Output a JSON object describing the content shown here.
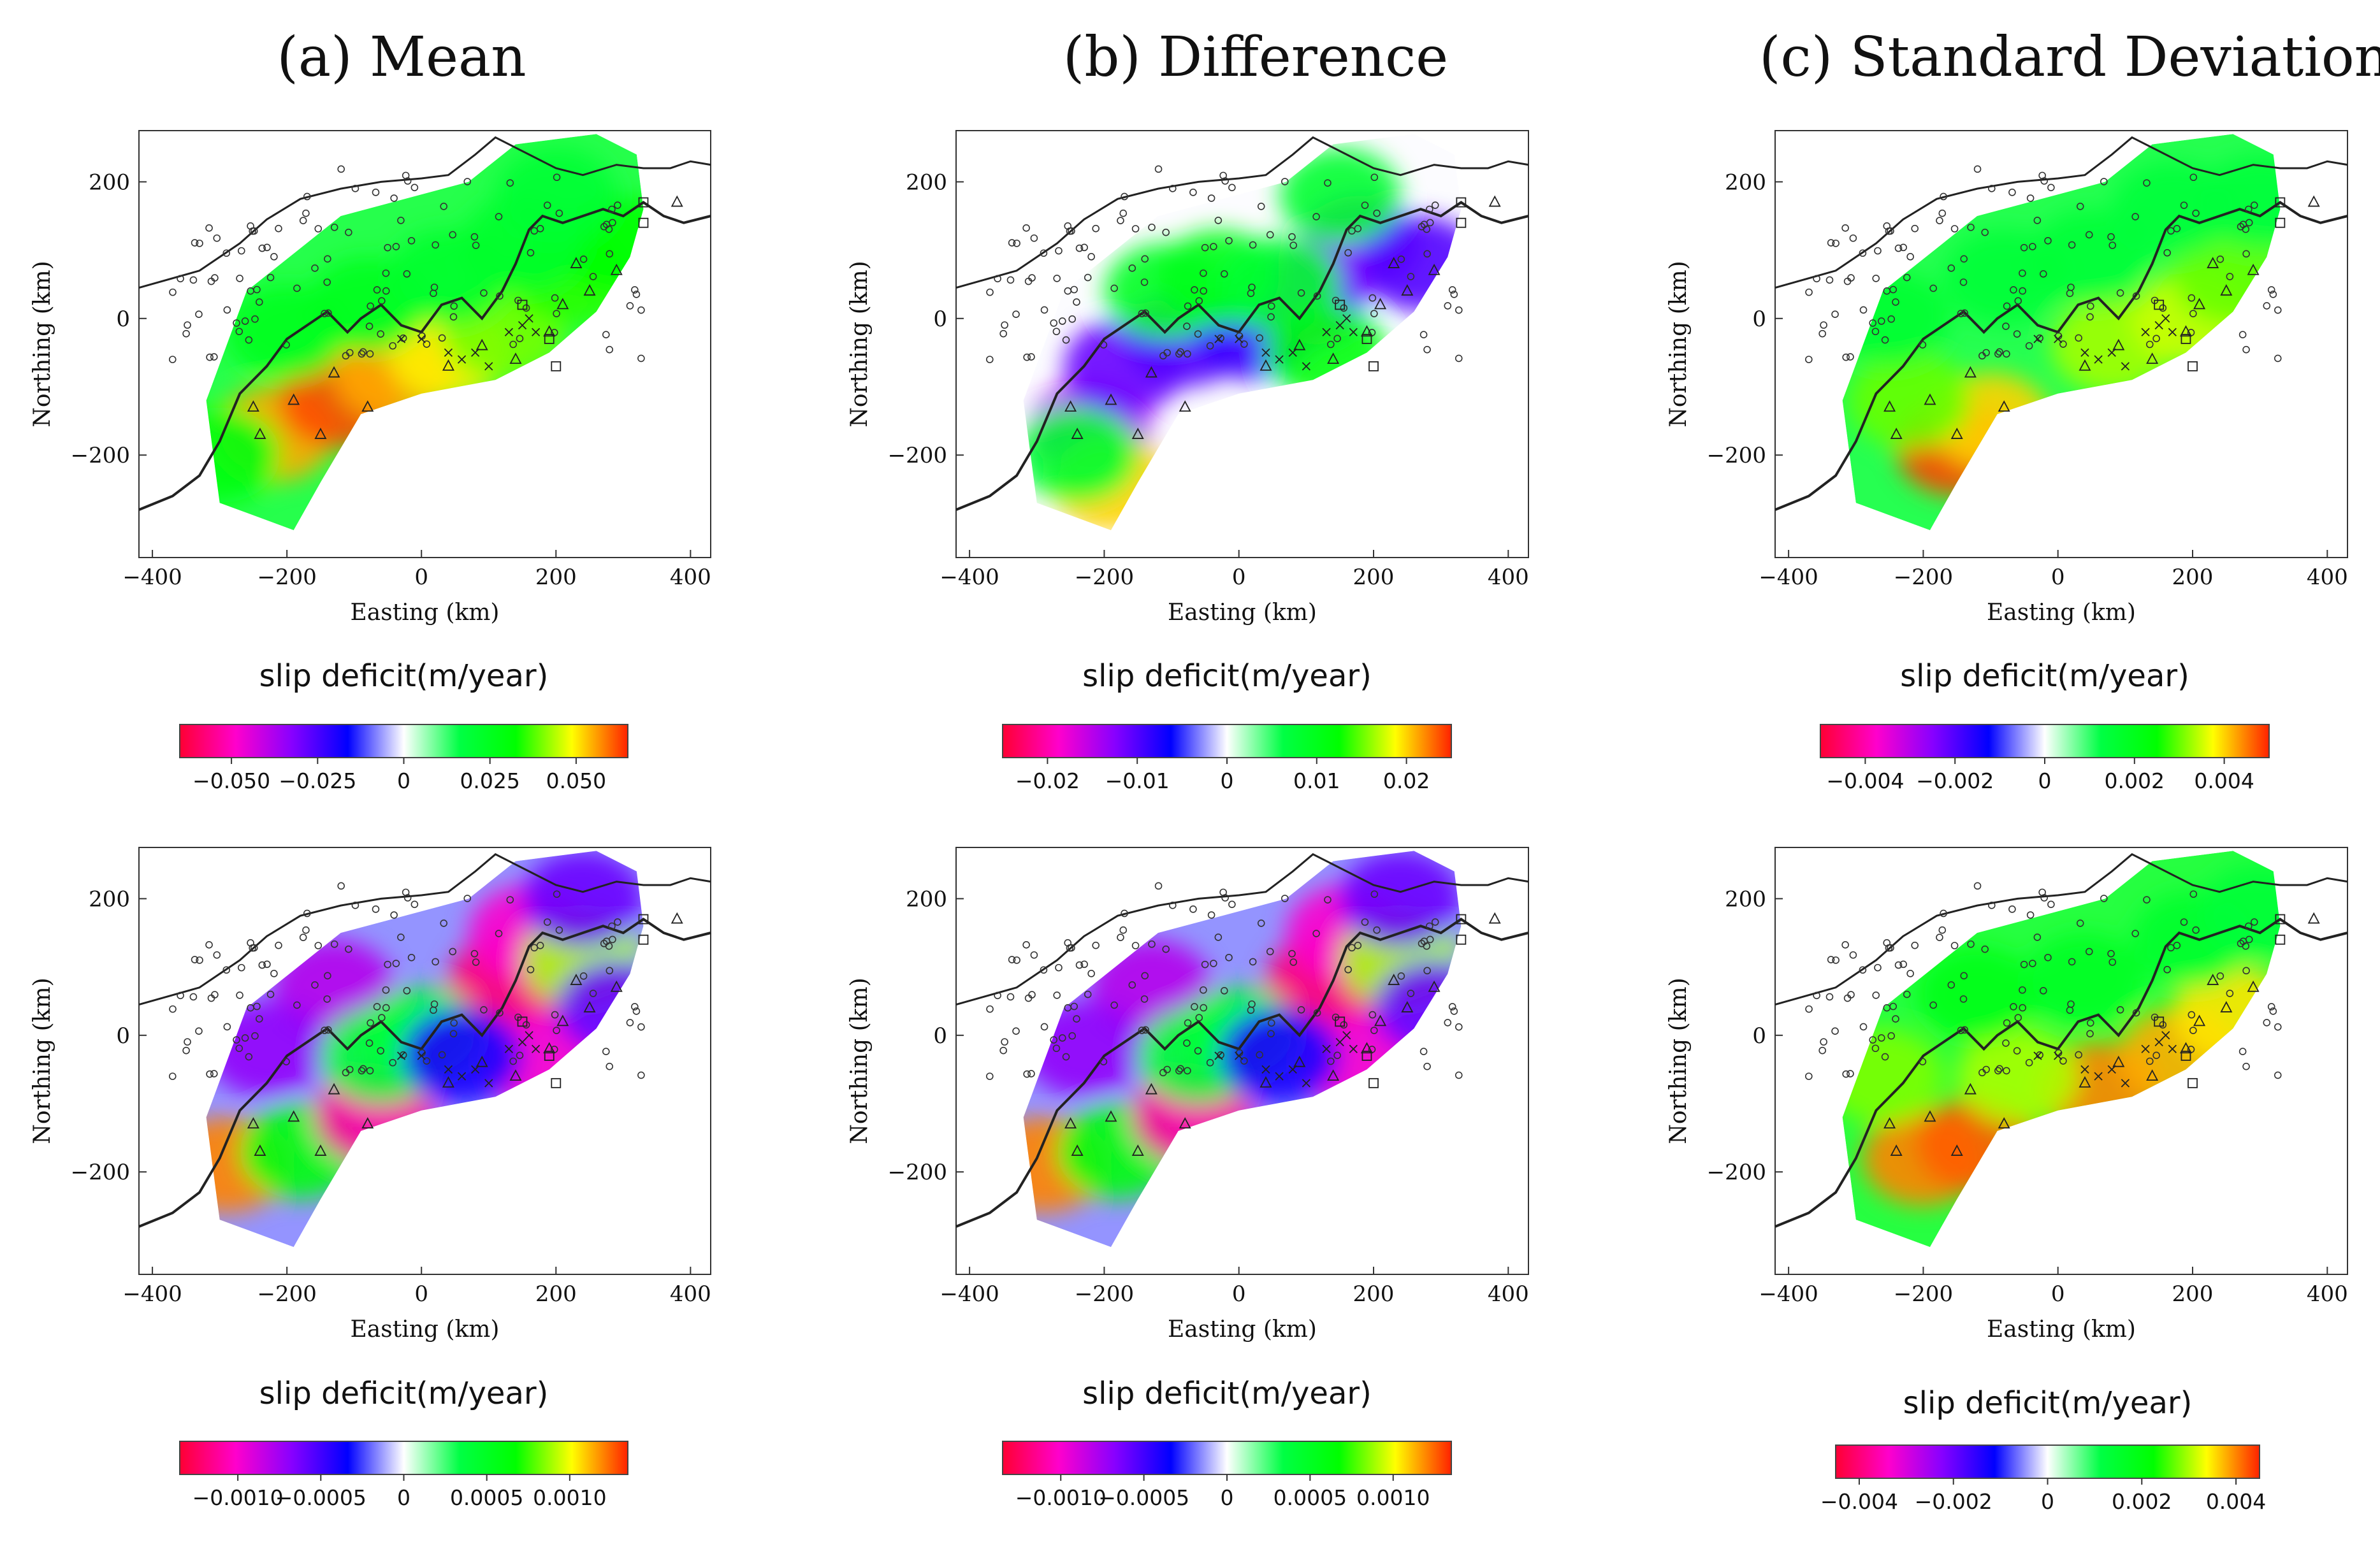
{
  "figure": {
    "column_titles": [
      "(a) Mean",
      "(b) Difference",
      "(c) Standard Deviation"
    ],
    "colormap": [
      "#ff0033",
      "#ff00cc",
      "#8800ff",
      "#0000ff",
      "#ffffff",
      "#00ff44",
      "#00ff00",
      "#ffff00",
      "#ff2200"
    ]
  },
  "chart_data": [
    {
      "id": "top-mean",
      "type": "heatmap",
      "column": 0,
      "row": 0,
      "xlabel": "Easting (km)",
      "ylabel": "Northing (km)",
      "xlim": [
        -420,
        430
      ],
      "ylim": [
        -350,
        275
      ],
      "xticks": [
        -400,
        -200,
        0,
        200,
        400
      ],
      "yticks": [
        -200,
        0,
        200
      ],
      "xtick_labels": [
        "−400",
        "−200",
        "0",
        "200",
        "400"
      ],
      "ytick_labels": [
        "−200",
        "0",
        "200"
      ],
      "colorbar": {
        "label": "slip deficit(m/year)",
        "range": [
          -0.065,
          0.065
        ],
        "ticks": [
          -0.05,
          -0.025,
          0,
          0.025,
          0.05
        ],
        "tick_labels": [
          "−0.050",
          "−0.025",
          "0",
          "0.025",
          "0.050"
        ]
      },
      "field": [
        {
          "x": -220,
          "y": -170,
          "v": 0.055
        },
        {
          "x": -120,
          "y": -120,
          "v": 0.062
        },
        {
          "x": -40,
          "y": -80,
          "v": 0.055
        },
        {
          "x": 40,
          "y": -50,
          "v": 0.05
        },
        {
          "x": 120,
          "y": -20,
          "v": 0.04
        },
        {
          "x": 220,
          "y": 60,
          "v": 0.035
        },
        {
          "x": 290,
          "y": 110,
          "v": 0.032
        },
        {
          "x": -300,
          "y": -200,
          "v": 0.03
        },
        {
          "x": -200,
          "y": -20,
          "v": 0.025
        },
        {
          "x": -80,
          "y": 20,
          "v": 0.025
        },
        {
          "x": 40,
          "y": 60,
          "v": 0.022
        },
        {
          "x": 150,
          "y": 110,
          "v": 0.022
        },
        {
          "x": 200,
          "y": 180,
          "v": 0.02
        }
      ]
    },
    {
      "id": "top-difference",
      "type": "heatmap",
      "column": 1,
      "row": 0,
      "xlabel": "Easting (km)",
      "ylabel": "Northing (km)",
      "xlim": [
        -420,
        430
      ],
      "ylim": [
        -350,
        275
      ],
      "xticks": [
        -400,
        -200,
        0,
        200,
        400
      ],
      "yticks": [
        -200,
        0,
        200
      ],
      "xtick_labels": [
        "−400",
        "−200",
        "0",
        "200",
        "400"
      ],
      "ytick_labels": [
        "−200",
        "0",
        "200"
      ],
      "colorbar": {
        "label": "slip deficit(m/year)",
        "range": [
          -0.025,
          0.025
        ],
        "ticks": [
          -0.02,
          -0.01,
          0,
          0.01,
          0.02
        ],
        "tick_labels": [
          "−0.02",
          "−0.01",
          "0",
          "0.01",
          "0.02"
        ]
      },
      "field": [
        {
          "x": -220,
          "y": -160,
          "v": -0.014
        },
        {
          "x": -170,
          "y": -70,
          "v": -0.011
        },
        {
          "x": -80,
          "y": -30,
          "v": -0.01
        },
        {
          "x": 20,
          "y": -20,
          "v": -0.009
        },
        {
          "x": 100,
          "y": 30,
          "v": -0.01
        },
        {
          "x": 180,
          "y": 110,
          "v": -0.012
        },
        {
          "x": 270,
          "y": 80,
          "v": -0.01
        },
        {
          "x": -190,
          "y": -240,
          "v": 0.02
        },
        {
          "x": -110,
          "y": 40,
          "v": 0.009
        },
        {
          "x": -30,
          "y": 60,
          "v": 0.01
        },
        {
          "x": 60,
          "y": 50,
          "v": 0.008
        },
        {
          "x": 150,
          "y": 180,
          "v": 0.008
        },
        {
          "x": 130,
          "y": -50,
          "v": 0.011
        },
        {
          "x": -240,
          "y": -200,
          "v": 0.008
        }
      ]
    },
    {
      "id": "top-stddev",
      "type": "heatmap",
      "column": 2,
      "row": 0,
      "xlabel": "Easting (km)",
      "ylabel": "Northing (km)",
      "xlim": [
        -420,
        430
      ],
      "ylim": [
        -350,
        275
      ],
      "xticks": [
        -400,
        -200,
        0,
        200,
        400
      ],
      "yticks": [
        -200,
        0,
        200
      ],
      "xtick_labels": [
        "−400",
        "−200",
        "0",
        "200",
        "400"
      ],
      "ytick_labels": [
        "−200",
        "0",
        "200"
      ],
      "colorbar": {
        "label": "slip deficit(m/year)",
        "range": [
          -0.005,
          0.005
        ],
        "ticks": [
          -0.004,
          -0.002,
          0,
          0.002,
          0.004
        ],
        "tick_labels": [
          "−0.004",
          "−0.002",
          "0",
          "0.002",
          "0.004"
        ]
      },
      "field": [
        {
          "x": -150,
          "y": -190,
          "v": 0.0048
        },
        {
          "x": -100,
          "y": -150,
          "v": 0.004
        },
        {
          "x": -220,
          "y": -120,
          "v": 0.003
        },
        {
          "x": 80,
          "y": -40,
          "v": 0.0033
        },
        {
          "x": 200,
          "y": 0,
          "v": 0.0035
        },
        {
          "x": 260,
          "y": 60,
          "v": 0.003
        },
        {
          "x": -250,
          "y": 0,
          "v": 0.0016
        },
        {
          "x": -80,
          "y": 60,
          "v": 0.0015
        },
        {
          "x": 50,
          "y": 90,
          "v": 0.0015
        },
        {
          "x": 170,
          "y": 160,
          "v": 0.0014
        },
        {
          "x": 300,
          "y": 170,
          "v": 0.0014
        }
      ]
    },
    {
      "id": "bottom-mean",
      "type": "heatmap",
      "column": 0,
      "row": 1,
      "xlabel": "Easting (km)",
      "ylabel": "Northing (km)",
      "xlim": [
        -420,
        430
      ],
      "ylim": [
        -350,
        275
      ],
      "xticks": [
        -400,
        -200,
        0,
        200,
        400
      ],
      "yticks": [
        -200,
        0,
        200
      ],
      "xtick_labels": [
        "−400",
        "−200",
        "0",
        "200",
        "400"
      ],
      "ytick_labels": [
        "−200",
        "0",
        "200"
      ],
      "colorbar": {
        "label": "slip deficit(m/year)",
        "range": [
          -0.00135,
          0.00135
        ],
        "ticks": [
          -0.001,
          -0.0005,
          0,
          0.0005,
          0.001
        ],
        "tick_labels": [
          "−0.0010",
          "−0.0005",
          "0",
          "0.0005",
          "0.0010"
        ]
      },
      "field": [
        {
          "x": -290,
          "y": -190,
          "v": 0.0012
        },
        {
          "x": -180,
          "y": -170,
          "v": 0.0006
        },
        {
          "x": -130,
          "y": 70,
          "v": -0.0008
        },
        {
          "x": -230,
          "y": -20,
          "v": -0.0007
        },
        {
          "x": -70,
          "y": -120,
          "v": -0.0011
        },
        {
          "x": 130,
          "y": 80,
          "v": -0.0012
        },
        {
          "x": 160,
          "y": 150,
          "v": -0.001
        },
        {
          "x": 240,
          "y": 110,
          "v": 0.0009
        },
        {
          "x": 0,
          "y": 0,
          "v": 0.0004
        },
        {
          "x": -60,
          "y": -30,
          "v": 0.0004
        },
        {
          "x": 180,
          "y": -40,
          "v": -0.001
        },
        {
          "x": 240,
          "y": 200,
          "v": -0.0006
        },
        {
          "x": 290,
          "y": 40,
          "v": -0.0006
        },
        {
          "x": 60,
          "y": -30,
          "v": -0.0004
        }
      ]
    },
    {
      "id": "bottom-difference",
      "type": "heatmap",
      "column": 1,
      "row": 1,
      "xlabel": "Easting (km)",
      "ylabel": "Northing (km)",
      "xlim": [
        -420,
        430
      ],
      "ylim": [
        -350,
        275
      ],
      "xticks": [
        -400,
        -200,
        0,
        200,
        400
      ],
      "yticks": [
        -200,
        0,
        200
      ],
      "xtick_labels": [
        "−400",
        "−200",
        "0",
        "200",
        "400"
      ],
      "ytick_labels": [
        "−200",
        "0",
        "200"
      ],
      "colorbar": {
        "label": "slip deficit(m/year)",
        "range": [
          -0.00135,
          0.00135
        ],
        "ticks": [
          -0.001,
          -0.0005,
          0,
          0.0005,
          0.001
        ],
        "tick_labels": [
          "−0.0010",
          "−0.0005",
          "0",
          "0.0005",
          "0.0010"
        ]
      },
      "field": [
        {
          "x": -290,
          "y": -190,
          "v": 0.0012
        },
        {
          "x": -180,
          "y": -170,
          "v": 0.0006
        },
        {
          "x": -130,
          "y": 70,
          "v": -0.0008
        },
        {
          "x": -230,
          "y": -20,
          "v": -0.0007
        },
        {
          "x": -70,
          "y": -120,
          "v": -0.0011
        },
        {
          "x": 130,
          "y": 80,
          "v": -0.0012
        },
        {
          "x": 160,
          "y": 150,
          "v": -0.001
        },
        {
          "x": 240,
          "y": 110,
          "v": 0.0009
        },
        {
          "x": 0,
          "y": 0,
          "v": 0.0004
        },
        {
          "x": -60,
          "y": -30,
          "v": 0.0004
        },
        {
          "x": 180,
          "y": -40,
          "v": -0.001
        },
        {
          "x": 240,
          "y": 200,
          "v": -0.0006
        },
        {
          "x": 290,
          "y": 40,
          "v": -0.0006
        },
        {
          "x": 60,
          "y": -30,
          "v": -0.0004
        }
      ]
    },
    {
      "id": "bottom-stddev",
      "type": "heatmap",
      "column": 2,
      "row": 1,
      "xlabel": "Easting (km)",
      "ylabel": "Northing (km)",
      "xlim": [
        -420,
        430
      ],
      "ylim": [
        -350,
        275
      ],
      "xticks": [
        -400,
        -200,
        0,
        200,
        400
      ],
      "yticks": [
        -200,
        0,
        200
      ],
      "xtick_labels": [
        "−400",
        "−200",
        "0",
        "200",
        "400"
      ],
      "ytick_labels": [
        "−200",
        "0",
        "200"
      ],
      "colorbar": {
        "label": "slip deficit(m/year)",
        "range": [
          -0.0045,
          0.0045
        ],
        "ticks": [
          -0.004,
          -0.002,
          0,
          0.002,
          0.004
        ],
        "tick_labels": [
          "−0.004",
          "−0.002",
          "0",
          "0.002",
          "0.004"
        ]
      },
      "field": [
        {
          "x": -200,
          "y": -180,
          "v": 0.004
        },
        {
          "x": -120,
          "y": -160,
          "v": 0.0042
        },
        {
          "x": 60,
          "y": -80,
          "v": 0.004
        },
        {
          "x": 180,
          "y": -30,
          "v": 0.0038
        },
        {
          "x": 260,
          "y": 30,
          "v": 0.0035
        },
        {
          "x": -260,
          "y": -60,
          "v": 0.0028
        },
        {
          "x": -60,
          "y": -60,
          "v": 0.003
        },
        {
          "x": -120,
          "y": 60,
          "v": 0.0018
        },
        {
          "x": 40,
          "y": 80,
          "v": 0.0017
        },
        {
          "x": 200,
          "y": 140,
          "v": 0.0015
        },
        {
          "x": 300,
          "y": 180,
          "v": 0.0013
        }
      ]
    }
  ]
}
